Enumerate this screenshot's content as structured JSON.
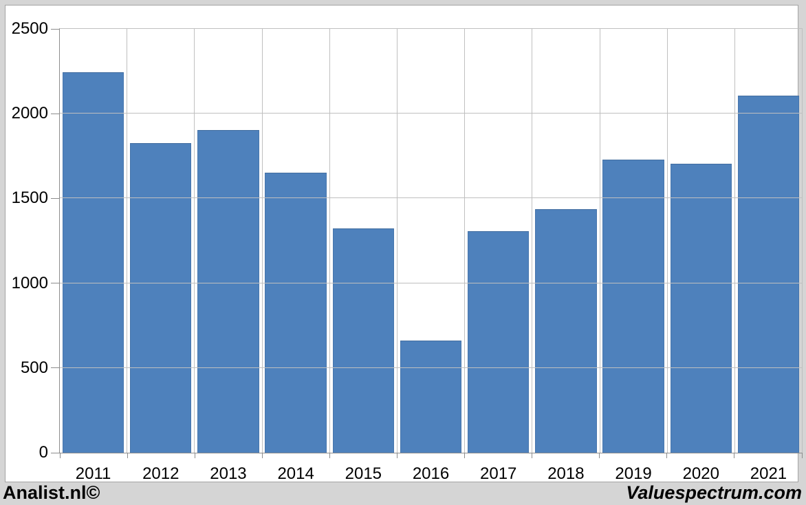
{
  "chart_data": {
    "type": "bar",
    "title": "",
    "xlabel": "",
    "ylabel": "",
    "categories": [
      "2011",
      "2012",
      "2013",
      "2014",
      "2015",
      "2016",
      "2017",
      "2018",
      "2019",
      "2020",
      "2021"
    ],
    "values": [
      2245,
      1825,
      1905,
      1650,
      1325,
      660,
      1305,
      1435,
      1730,
      1705,
      2105
    ],
    "ylim": [
      0,
      2500
    ],
    "yticks": [
      0,
      500,
      1000,
      1500,
      2000,
      2500
    ],
    "grid": true,
    "legend": false,
    "bar_color": "#4e81bc"
  },
  "colors": {
    "background": "#d5d5d5",
    "panel": "#ffffff",
    "gridline": "#bfbfbf",
    "axis": "#8c8c8c",
    "bar": "#4e81bc"
  },
  "footer": {
    "left": "Analist.nl©",
    "right": "Valuespectrum.com"
  }
}
